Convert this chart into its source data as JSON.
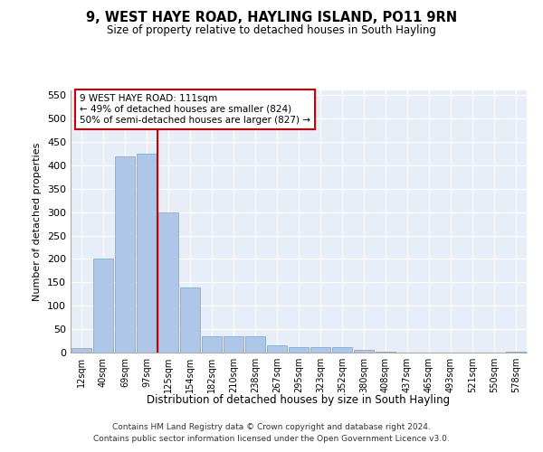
{
  "title": "9, WEST HAYE ROAD, HAYLING ISLAND, PO11 9RN",
  "subtitle": "Size of property relative to detached houses in South Hayling",
  "xlabel": "Distribution of detached houses by size in South Hayling",
  "ylabel": "Number of detached properties",
  "categories": [
    "12sqm",
    "40sqm",
    "69sqm",
    "97sqm",
    "125sqm",
    "154sqm",
    "182sqm",
    "210sqm",
    "238sqm",
    "267sqm",
    "295sqm",
    "323sqm",
    "352sqm",
    "380sqm",
    "408sqm",
    "437sqm",
    "465sqm",
    "493sqm",
    "521sqm",
    "550sqm",
    "578sqm"
  ],
  "values": [
    10,
    200,
    420,
    425,
    300,
    140,
    35,
    35,
    35,
    15,
    12,
    12,
    12,
    5,
    1,
    0,
    0,
    0,
    0,
    0,
    2
  ],
  "bar_color": "#aec6e8",
  "bar_edge_color": "#6ea8d8",
  "bg_color": "#e8eef8",
  "grid_color": "#ffffff",
  "vline_color": "#cc0000",
  "annotation_line1": "9 WEST HAYE ROAD: 111sqm",
  "annotation_line2": "← 49% of detached houses are smaller (824)",
  "annotation_line3": "50% of semi-detached houses are larger (827) →",
  "annotation_box_color": "#cc0000",
  "ylim": [
    0,
    560
  ],
  "yticks": [
    0,
    50,
    100,
    150,
    200,
    250,
    300,
    350,
    400,
    450,
    500,
    550
  ],
  "footer1": "Contains HM Land Registry data © Crown copyright and database right 2024.",
  "footer2": "Contains public sector information licensed under the Open Government Licence v3.0."
}
